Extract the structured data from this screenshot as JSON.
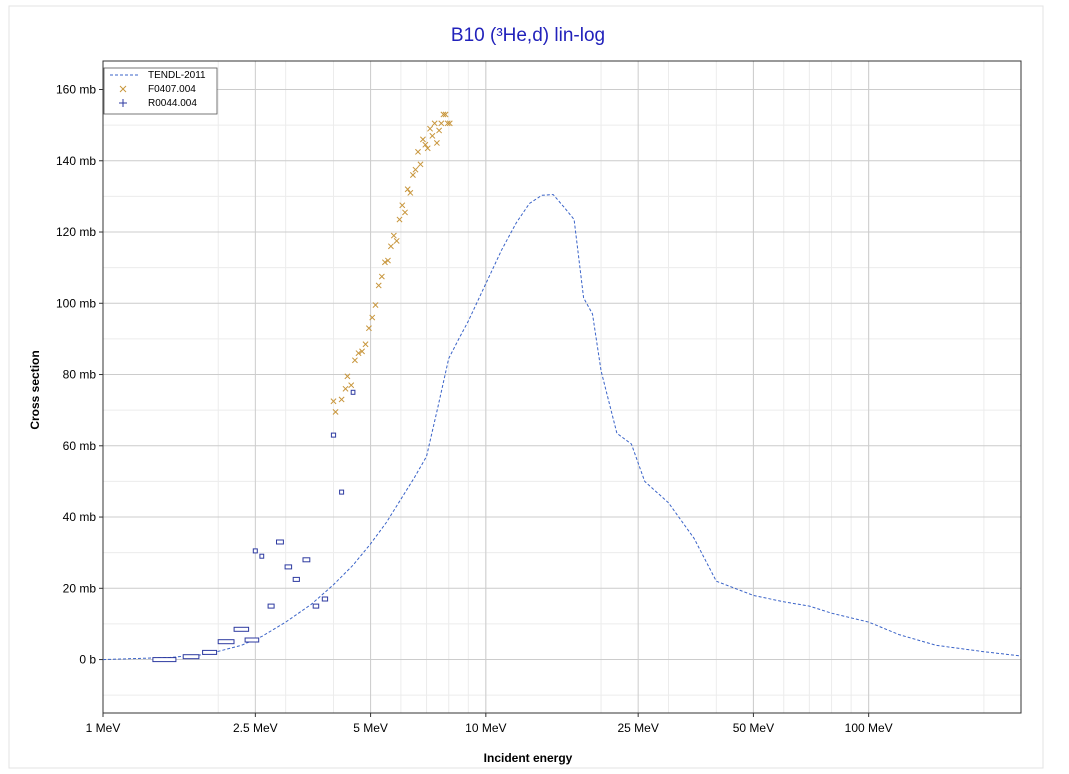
{
  "chart_data": {
    "type": "scatter",
    "title": "B10 (³He,d) lin-log",
    "xlabel": "Incident energy",
    "ylabel": "Cross section",
    "x_scale": "log",
    "x_unit": "MeV",
    "y_unit": "mb",
    "xlim": [
      1,
      250
    ],
    "ylim": [
      -15,
      168
    ],
    "x_ticks": [
      {
        "value": 1,
        "label": "1 MeV"
      },
      {
        "value": 2.5,
        "label": "2.5 MeV"
      },
      {
        "value": 5,
        "label": "5 MeV"
      },
      {
        "value": 10,
        "label": "10 MeV"
      },
      {
        "value": 25,
        "label": "25 MeV"
      },
      {
        "value": 50,
        "label": "50 MeV"
      },
      {
        "value": 100,
        "label": "100 MeV"
      }
    ],
    "y_ticks": [
      {
        "value": 0,
        "label": "0 b"
      },
      {
        "value": 20,
        "label": "20 mb"
      },
      {
        "value": 40,
        "label": "40 mb"
      },
      {
        "value": 60,
        "label": "60 mb"
      },
      {
        "value": 80,
        "label": "80 mb"
      },
      {
        "value": 100,
        "label": "100 mb"
      },
      {
        "value": 120,
        "label": "120 mb"
      },
      {
        "value": 140,
        "label": "140 mb"
      },
      {
        "value": 160,
        "label": "160 mb"
      }
    ],
    "grid": true,
    "legend_position": "top-left",
    "series": [
      {
        "name": "TENDL-2011",
        "type": "line",
        "style": "dashed",
        "color": "#3a63c8",
        "x": [
          1,
          1.5,
          1.8,
          2,
          2.3,
          2.6,
          3,
          3.5,
          4,
          4.5,
          5,
          5.5,
          6,
          6.5,
          7,
          7.5,
          8,
          8.5,
          9,
          10,
          11,
          12,
          13,
          14,
          15,
          16,
          17,
          18,
          19,
          20,
          22,
          24,
          26,
          30,
          35,
          40,
          50,
          60,
          70,
          80,
          100,
          120,
          150,
          200,
          250
        ],
        "y": [
          0,
          0.6,
          1.3,
          2.3,
          4.0,
          6.5,
          10.5,
          15.5,
          21,
          26.5,
          32.5,
          38.5,
          45,
          51,
          57,
          71,
          84.5,
          90,
          95,
          105.5,
          115,
          122.5,
          128,
          130.3,
          130.5,
          127,
          123.5,
          101.5,
          97,
          81,
          63.5,
          60.5,
          50,
          44,
          34,
          22,
          18,
          16.2,
          15,
          13,
          10.5,
          7,
          4,
          2.2,
          1
        ]
      },
      {
        "name": "F0407.004",
        "type": "scatter",
        "marker": "x",
        "color": "#c8963c",
        "x": [
          4.0,
          4.05,
          4.2,
          4.3,
          4.35,
          4.45,
          4.55,
          4.65,
          4.75,
          4.85,
          4.95,
          5.05,
          5.15,
          5.25,
          5.35,
          5.45,
          5.55,
          5.65,
          5.75,
          5.85,
          5.95,
          6.05,
          6.15,
          6.25,
          6.35,
          6.45,
          6.55,
          6.65,
          6.75,
          6.85,
          6.95,
          7.05,
          7.15,
          7.25,
          7.35,
          7.45,
          7.55,
          7.65,
          7.75,
          7.85,
          7.95,
          8.05
        ],
        "y": [
          72.5,
          69.5,
          73,
          76,
          79.5,
          77,
          84,
          86,
          86.5,
          88.5,
          93,
          96,
          99.5,
          105,
          107.5,
          111.5,
          112,
          116,
          119,
          117.5,
          123.5,
          127.5,
          125.5,
          132,
          131,
          136,
          137.5,
          142.5,
          139,
          146,
          144.5,
          143.5,
          149,
          147,
          150.5,
          145,
          148.5,
          150.5,
          153,
          153,
          150.5,
          150.5
        ]
      },
      {
        "name": "R0044.004",
        "type": "scatter",
        "marker": "+",
        "color": "#2d3aa0",
        "x": [
          1.45,
          1.7,
          1.9,
          2.1,
          2.3,
          2.45,
          2.5,
          2.6,
          2.75,
          2.9,
          3.05,
          3.2,
          3.4,
          3.6,
          3.8,
          4.0,
          4.2,
          4.5
        ],
        "y": [
          0,
          0.8,
          2.0,
          5.0,
          8.5,
          5.5,
          30.5,
          29,
          15,
          33,
          26,
          22.5,
          28,
          15,
          17,
          63,
          47,
          75
        ],
        "x_err": [
          0.1,
          0.08,
          0.08,
          0.1,
          0.1,
          0.1,
          0.03,
          0.03,
          0.05,
          0.06,
          0.06,
          0.06,
          0.07,
          0.06,
          0.06,
          0.05,
          0.05,
          0.05
        ]
      }
    ]
  }
}
